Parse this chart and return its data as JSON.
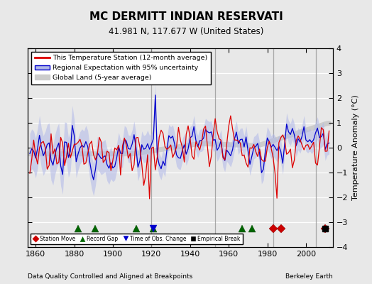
{
  "title": "MC DERMITT INDIAN RESERVATI",
  "subtitle": "41.981 N, 117.677 W (United States)",
  "ylabel": "Temperature Anomaly (°C)",
  "xlabel_bottom_left": "Data Quality Controlled and Aligned at Breakpoints",
  "xlabel_bottom_right": "Berkeley Earth",
  "ylim": [
    -4,
    4
  ],
  "xlim": [
    1856,
    2014
  ],
  "xticks": [
    1860,
    1880,
    1900,
    1920,
    1940,
    1960,
    1980,
    2000
  ],
  "yticks": [
    -4,
    -3,
    -2,
    -1,
    0,
    1,
    2,
    3,
    4
  ],
  "bg_color": "#e8e8e8",
  "plot_bg_color": "#e8e8e8",
  "grid_color": "#ffffff",
  "red_line_color": "#dd0000",
  "blue_line_color": "#0000cc",
  "blue_fill_color": "#b0b8e8",
  "gray_line_color": "#cccccc",
  "vertical_line_color": "#999999",
  "vertical_lines": [
    1920,
    1953,
    1983,
    2005
  ],
  "station_moves": [
    1983,
    1987,
    2010
  ],
  "record_gaps": [
    1882,
    1891,
    1912,
    1921,
    1967,
    1972
  ],
  "time_of_obs": [
    1921
  ],
  "empirical_breaks": [
    2010
  ],
  "seed": 12345
}
